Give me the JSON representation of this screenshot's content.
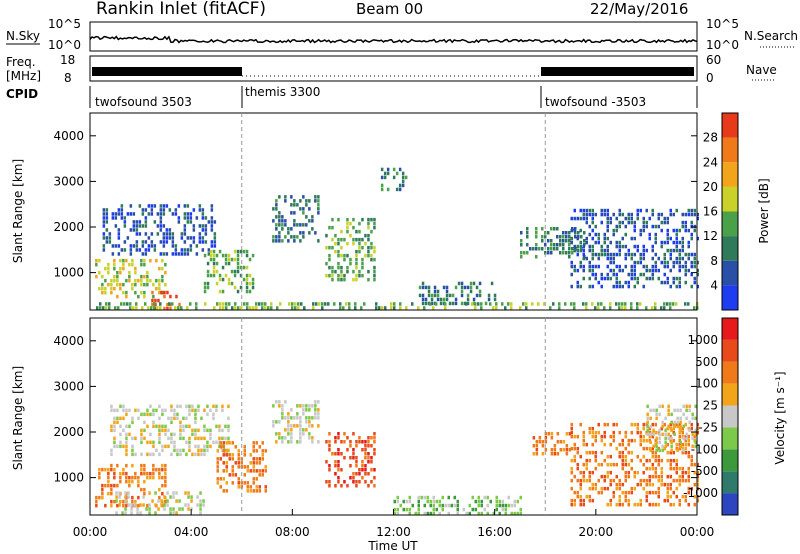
{
  "header": {
    "title": "Rankin Inlet (fitACF)",
    "beam": "Beam 00",
    "date": "22/May/2016"
  },
  "labels": {
    "nsky": "N.Sky",
    "nsearch": "N.Search",
    "freq": "Freq.",
    "mhz": "[MHz]",
    "nave": "Nave",
    "cpid": "CPID"
  },
  "noise_axis": {
    "left_top": "10^5",
    "left_bottom": "10^0",
    "right_top": "10^5",
    "right_bottom": "10^0"
  },
  "freq_axis": {
    "left_top": "18",
    "left_bottom": "8",
    "right_top": "60",
    "right_bottom": "0"
  },
  "cpid_segments": [
    {
      "label": "twofsound 3503",
      "start_hour": 0,
      "end_hour": 6
    },
    {
      "label": "themis 3300",
      "start_hour": 6,
      "end_hour": 18
    },
    {
      "label": "twofsound -3503",
      "start_hour": 18,
      "end_hour": 24
    }
  ],
  "chart_data": [
    {
      "type": "heatmap",
      "quantity": "power",
      "xlabel": "",
      "ylabel": "Slant Range [km]",
      "xlim": [
        0,
        24
      ],
      "ylim": [
        180,
        4500
      ],
      "yticks": [
        1000,
        2000,
        3000,
        4000
      ],
      "colorbar_label": "Power [dB]",
      "colorbar_ticks": [
        "4",
        "8",
        "12",
        "16",
        "20",
        "24",
        "28"
      ],
      "colorbar_colors": [
        "#1f3df0",
        "#2a4fa6",
        "#2f7a5a",
        "#4aa14a",
        "#c9d12a",
        "#f2a41a",
        "#f07a1a",
        "#e63a1a"
      ],
      "patches": [
        {
          "t0": 0.2,
          "t1": 3.0,
          "r0": 500,
          "r1": 1300,
          "level": 4
        },
        {
          "t0": 2.3,
          "t1": 3.6,
          "r0": 200,
          "r1": 600,
          "level": 7
        },
        {
          "t0": 0.5,
          "t1": 5.0,
          "r0": 1400,
          "r1": 2500,
          "level": 1
        },
        {
          "t0": 4.5,
          "t1": 6.5,
          "r0": 600,
          "r1": 1500,
          "level": 3
        },
        {
          "t0": 7.2,
          "t1": 9.0,
          "r0": 1700,
          "r1": 2700,
          "level": 2
        },
        {
          "t0": 9.3,
          "t1": 11.2,
          "r0": 800,
          "r1": 2200,
          "level": 3
        },
        {
          "t0": 11.5,
          "t1": 12.5,
          "r0": 2800,
          "r1": 3300,
          "level": 2
        },
        {
          "t0": 13.0,
          "t1": 16.0,
          "r0": 300,
          "r1": 800,
          "level": 2
        },
        {
          "t0": 17.0,
          "t1": 19.5,
          "r0": 1300,
          "r1": 2000,
          "level": 2
        },
        {
          "t0": 19.0,
          "t1": 24.0,
          "r0": 700,
          "r1": 2400,
          "level": 1
        },
        {
          "t0": 0.0,
          "t1": 24.0,
          "r0": 180,
          "r1": 350,
          "level": 3
        }
      ]
    },
    {
      "type": "heatmap",
      "quantity": "velocity",
      "xlabel": "Time UT",
      "ylabel": "Slant Range [km]",
      "xlim": [
        0,
        24
      ],
      "ylim": [
        180,
        4500
      ],
      "xticks": [
        "00:00",
        "04:00",
        "08:00",
        "12:00",
        "16:00",
        "20:00",
        "00:00"
      ],
      "yticks": [
        1000,
        2000,
        3000,
        4000
      ],
      "colorbar_label": "Velocity [m s⁻¹]",
      "colorbar_ticks": [
        "1000",
        "500",
        "100",
        "25",
        "-25",
        "-100",
        "-500",
        "-1000"
      ],
      "colorbar_colors": [
        "#2d46c0",
        "#2f7a6a",
        "#3c9a3c",
        "#7dc94a",
        "#c8c8c8",
        "#f2a41a",
        "#f07a1a",
        "#e84a1a",
        "#e61a1a"
      ],
      "patches": [
        {
          "t0": 0.2,
          "t1": 3.0,
          "r0": 400,
          "r1": 1300,
          "level": 6
        },
        {
          "t0": 1.0,
          "t1": 4.5,
          "r0": 200,
          "r1": 700,
          "level": 4
        },
        {
          "t0": 0.8,
          "t1": 5.5,
          "r0": 1500,
          "r1": 2600,
          "level": 4
        },
        {
          "t0": 5.0,
          "t1": 7.0,
          "r0": 700,
          "r1": 1800,
          "level": 6
        },
        {
          "t0": 7.2,
          "t1": 9.0,
          "r0": 1800,
          "r1": 2700,
          "level": 4
        },
        {
          "t0": 9.3,
          "t1": 11.2,
          "r0": 800,
          "r1": 2000,
          "level": 7
        },
        {
          "t0": 12.0,
          "t1": 17.0,
          "r0": 200,
          "r1": 600,
          "level": 3
        },
        {
          "t0": 17.5,
          "t1": 19.0,
          "r0": 1500,
          "r1": 2000,
          "level": 6
        },
        {
          "t0": 19.0,
          "t1": 24.0,
          "r0": 400,
          "r1": 2200,
          "level": 6
        },
        {
          "t0": 22.0,
          "t1": 24.0,
          "r0": 1600,
          "r1": 2600,
          "level": 4
        }
      ]
    }
  ]
}
